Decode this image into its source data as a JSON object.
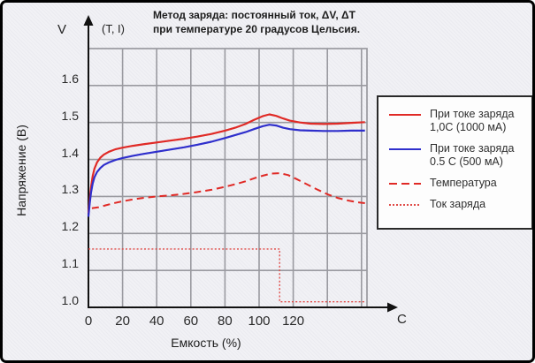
{
  "title": {
    "line1": "Метод заряда: постоянный ток, ΔV, ΔT",
    "line2": "при температуре 20 градусов Цельсия."
  },
  "axis_annotations": {
    "y_unit": "V",
    "top_label": "(T, I)",
    "x_unit": "C"
  },
  "legend": {
    "items": [
      {
        "swatch": "red-solid",
        "lines": [
          "При токе заряда",
          "1,0C (1000 мА)"
        ]
      },
      {
        "swatch": "blue-solid",
        "lines": [
          "При токе заряда",
          "0.5 C (500 мА)"
        ]
      },
      {
        "swatch": "red-dashed",
        "lines": [
          "Температура"
        ]
      },
      {
        "swatch": "red-dotted",
        "lines": [
          "Ток заряда"
        ]
      }
    ]
  },
  "colors": {
    "red": "#e02a26",
    "blue": "#2f2fcc",
    "grid": "#9a9aa0",
    "axis": "#111111",
    "background": "#f1f1f5",
    "legend_bg": "#fdfdfd",
    "legend_border": "#2a2a2a"
  },
  "chart_data": {
    "type": "line",
    "title": "Метод заряда: постоянный ток, ΔV, ΔT при температуре 20 градусов Цельсия.",
    "xlabel": "Емкость (%)",
    "ylabel": "Напряжение (В)",
    "xlim": [
      0,
      163
    ],
    "ylim": [
      1.0,
      1.7
    ],
    "xticks": [
      "0",
      "20",
      "40",
      "60",
      "80",
      "100",
      "120"
    ],
    "xtick_values": [
      0,
      20,
      40,
      60,
      80,
      100,
      120
    ],
    "yticks": [
      "1.6",
      "1.5",
      "1.4",
      "1.3",
      "1.2",
      "1.1",
      "1.0"
    ],
    "ytick_values": [
      1.6,
      1.5,
      1.4,
      1.3,
      1.2,
      1.1,
      1.0
    ],
    "grid": true,
    "legend_position": "right",
    "series": [
      {
        "name": "При токе заряда 1,0C (1000 мА)",
        "style": "solid",
        "color": "#e02a26",
        "width": 2.2,
        "points": [
          [
            0,
            1.255
          ],
          [
            0.7,
            1.29
          ],
          [
            1.5,
            1.325
          ],
          [
            2.5,
            1.355
          ],
          [
            3.5,
            1.375
          ],
          [
            5,
            1.392
          ],
          [
            7,
            1.405
          ],
          [
            9,
            1.413
          ],
          [
            12,
            1.421
          ],
          [
            16,
            1.428
          ],
          [
            20,
            1.432
          ],
          [
            26,
            1.437
          ],
          [
            32,
            1.441
          ],
          [
            40,
            1.446
          ],
          [
            48,
            1.451
          ],
          [
            56,
            1.456
          ],
          [
            64,
            1.462
          ],
          [
            72,
            1.469
          ],
          [
            80,
            1.478
          ],
          [
            86,
            1.486
          ],
          [
            92,
            1.496
          ],
          [
            97,
            1.507
          ],
          [
            102,
            1.517
          ],
          [
            106,
            1.522
          ],
          [
            110,
            1.518
          ],
          [
            114,
            1.511
          ],
          [
            118,
            1.505
          ],
          [
            124,
            1.5
          ],
          [
            130,
            1.497
          ],
          [
            138,
            1.496
          ],
          [
            146,
            1.497
          ],
          [
            154,
            1.499
          ],
          [
            162,
            1.501
          ]
        ]
      },
      {
        "name": "При токе заряда 0.5 C (500 мА)",
        "style": "solid",
        "color": "#2f2fcc",
        "width": 2.2,
        "points": [
          [
            0,
            1.245
          ],
          [
            0.7,
            1.28
          ],
          [
            1.5,
            1.31
          ],
          [
            2.5,
            1.335
          ],
          [
            3.5,
            1.352
          ],
          [
            5,
            1.366
          ],
          [
            7,
            1.377
          ],
          [
            9,
            1.385
          ],
          [
            12,
            1.392
          ],
          [
            16,
            1.399
          ],
          [
            20,
            1.404
          ],
          [
            26,
            1.41
          ],
          [
            32,
            1.415
          ],
          [
            40,
            1.421
          ],
          [
            48,
            1.427
          ],
          [
            56,
            1.433
          ],
          [
            64,
            1.44
          ],
          [
            72,
            1.448
          ],
          [
            80,
            1.458
          ],
          [
            86,
            1.466
          ],
          [
            92,
            1.474
          ],
          [
            97,
            1.482
          ],
          [
            102,
            1.49
          ],
          [
            106,
            1.494
          ],
          [
            110,
            1.492
          ],
          [
            114,
            1.486
          ],
          [
            118,
            1.482
          ],
          [
            124,
            1.479
          ],
          [
            130,
            1.478
          ],
          [
            138,
            1.477
          ],
          [
            146,
            1.477
          ],
          [
            154,
            1.478
          ],
          [
            162,
            1.478
          ]
        ]
      },
      {
        "name": "Температура",
        "style": "dashed",
        "color": "#e02a26",
        "width": 2,
        "points": [
          [
            2,
            1.268
          ],
          [
            6,
            1.271
          ],
          [
            10,
            1.276
          ],
          [
            15,
            1.282
          ],
          [
            20,
            1.287
          ],
          [
            26,
            1.292
          ],
          [
            32,
            1.296
          ],
          [
            40,
            1.3
          ],
          [
            48,
            1.303
          ],
          [
            56,
            1.307
          ],
          [
            64,
            1.312
          ],
          [
            72,
            1.318
          ],
          [
            80,
            1.326
          ],
          [
            86,
            1.333
          ],
          [
            92,
            1.341
          ],
          [
            97,
            1.349
          ],
          [
            102,
            1.356
          ],
          [
            107,
            1.362
          ],
          [
            112,
            1.363
          ],
          [
            117,
            1.358
          ],
          [
            122,
            1.347
          ],
          [
            128,
            1.333
          ],
          [
            134,
            1.319
          ],
          [
            140,
            1.306
          ],
          [
            146,
            1.296
          ],
          [
            152,
            1.289
          ],
          [
            158,
            1.284
          ],
          [
            162,
            1.282
          ]
        ]
      },
      {
        "name": "Ток заряда",
        "style": "dotted",
        "color": "#e04a46",
        "width": 1.4,
        "points": [
          [
            0,
            1.158
          ],
          [
            112,
            1.158
          ],
          [
            112,
            1.015
          ],
          [
            162,
            1.015
          ]
        ]
      }
    ]
  }
}
